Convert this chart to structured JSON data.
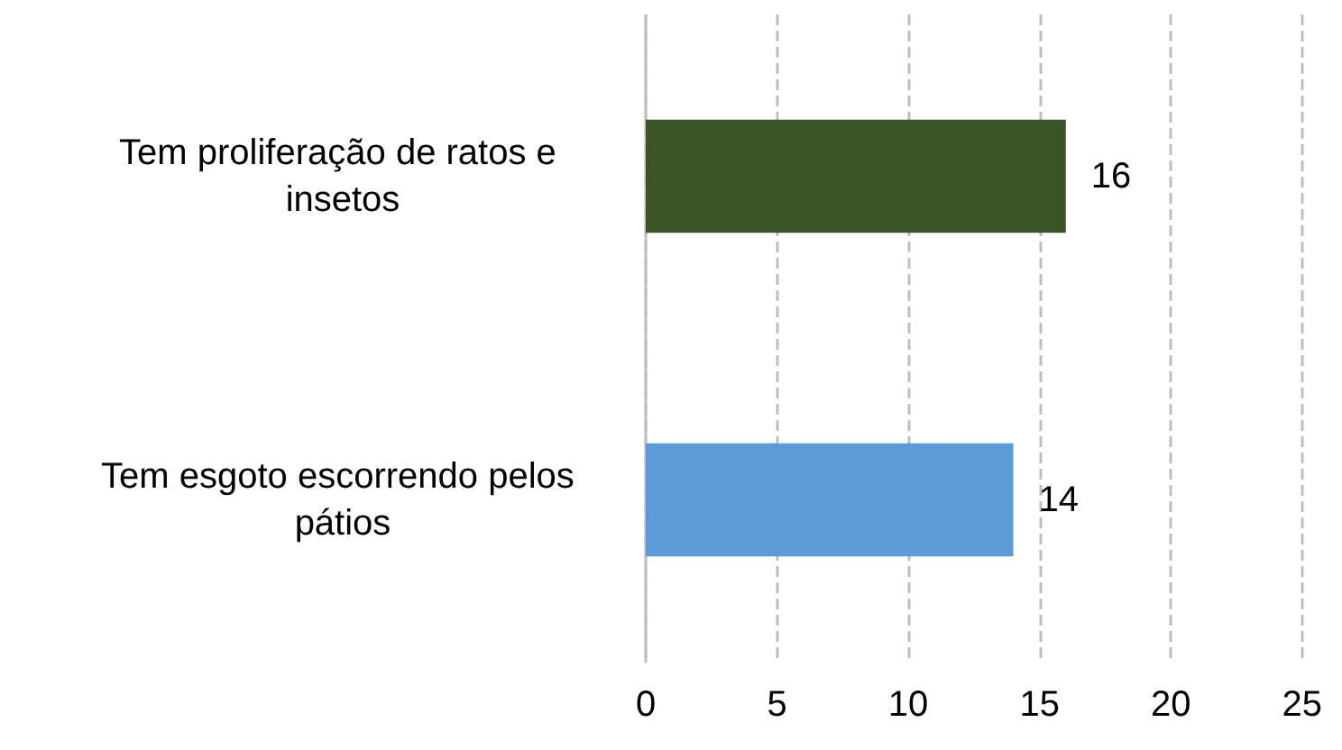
{
  "chart_data": {
    "type": "bar",
    "orientation": "horizontal",
    "categories": [
      "Tem proliferação de ratos e insetos",
      "Tem esgoto escorrendo pelos pátios"
    ],
    "values": [
      16,
      14
    ],
    "colors": [
      "#3a5525",
      "#5b9bd5"
    ],
    "xlim": [
      0,
      25
    ],
    "xticks": [
      0,
      5,
      10,
      15,
      20,
      25
    ],
    "grid": "x",
    "data_labels": true
  }
}
